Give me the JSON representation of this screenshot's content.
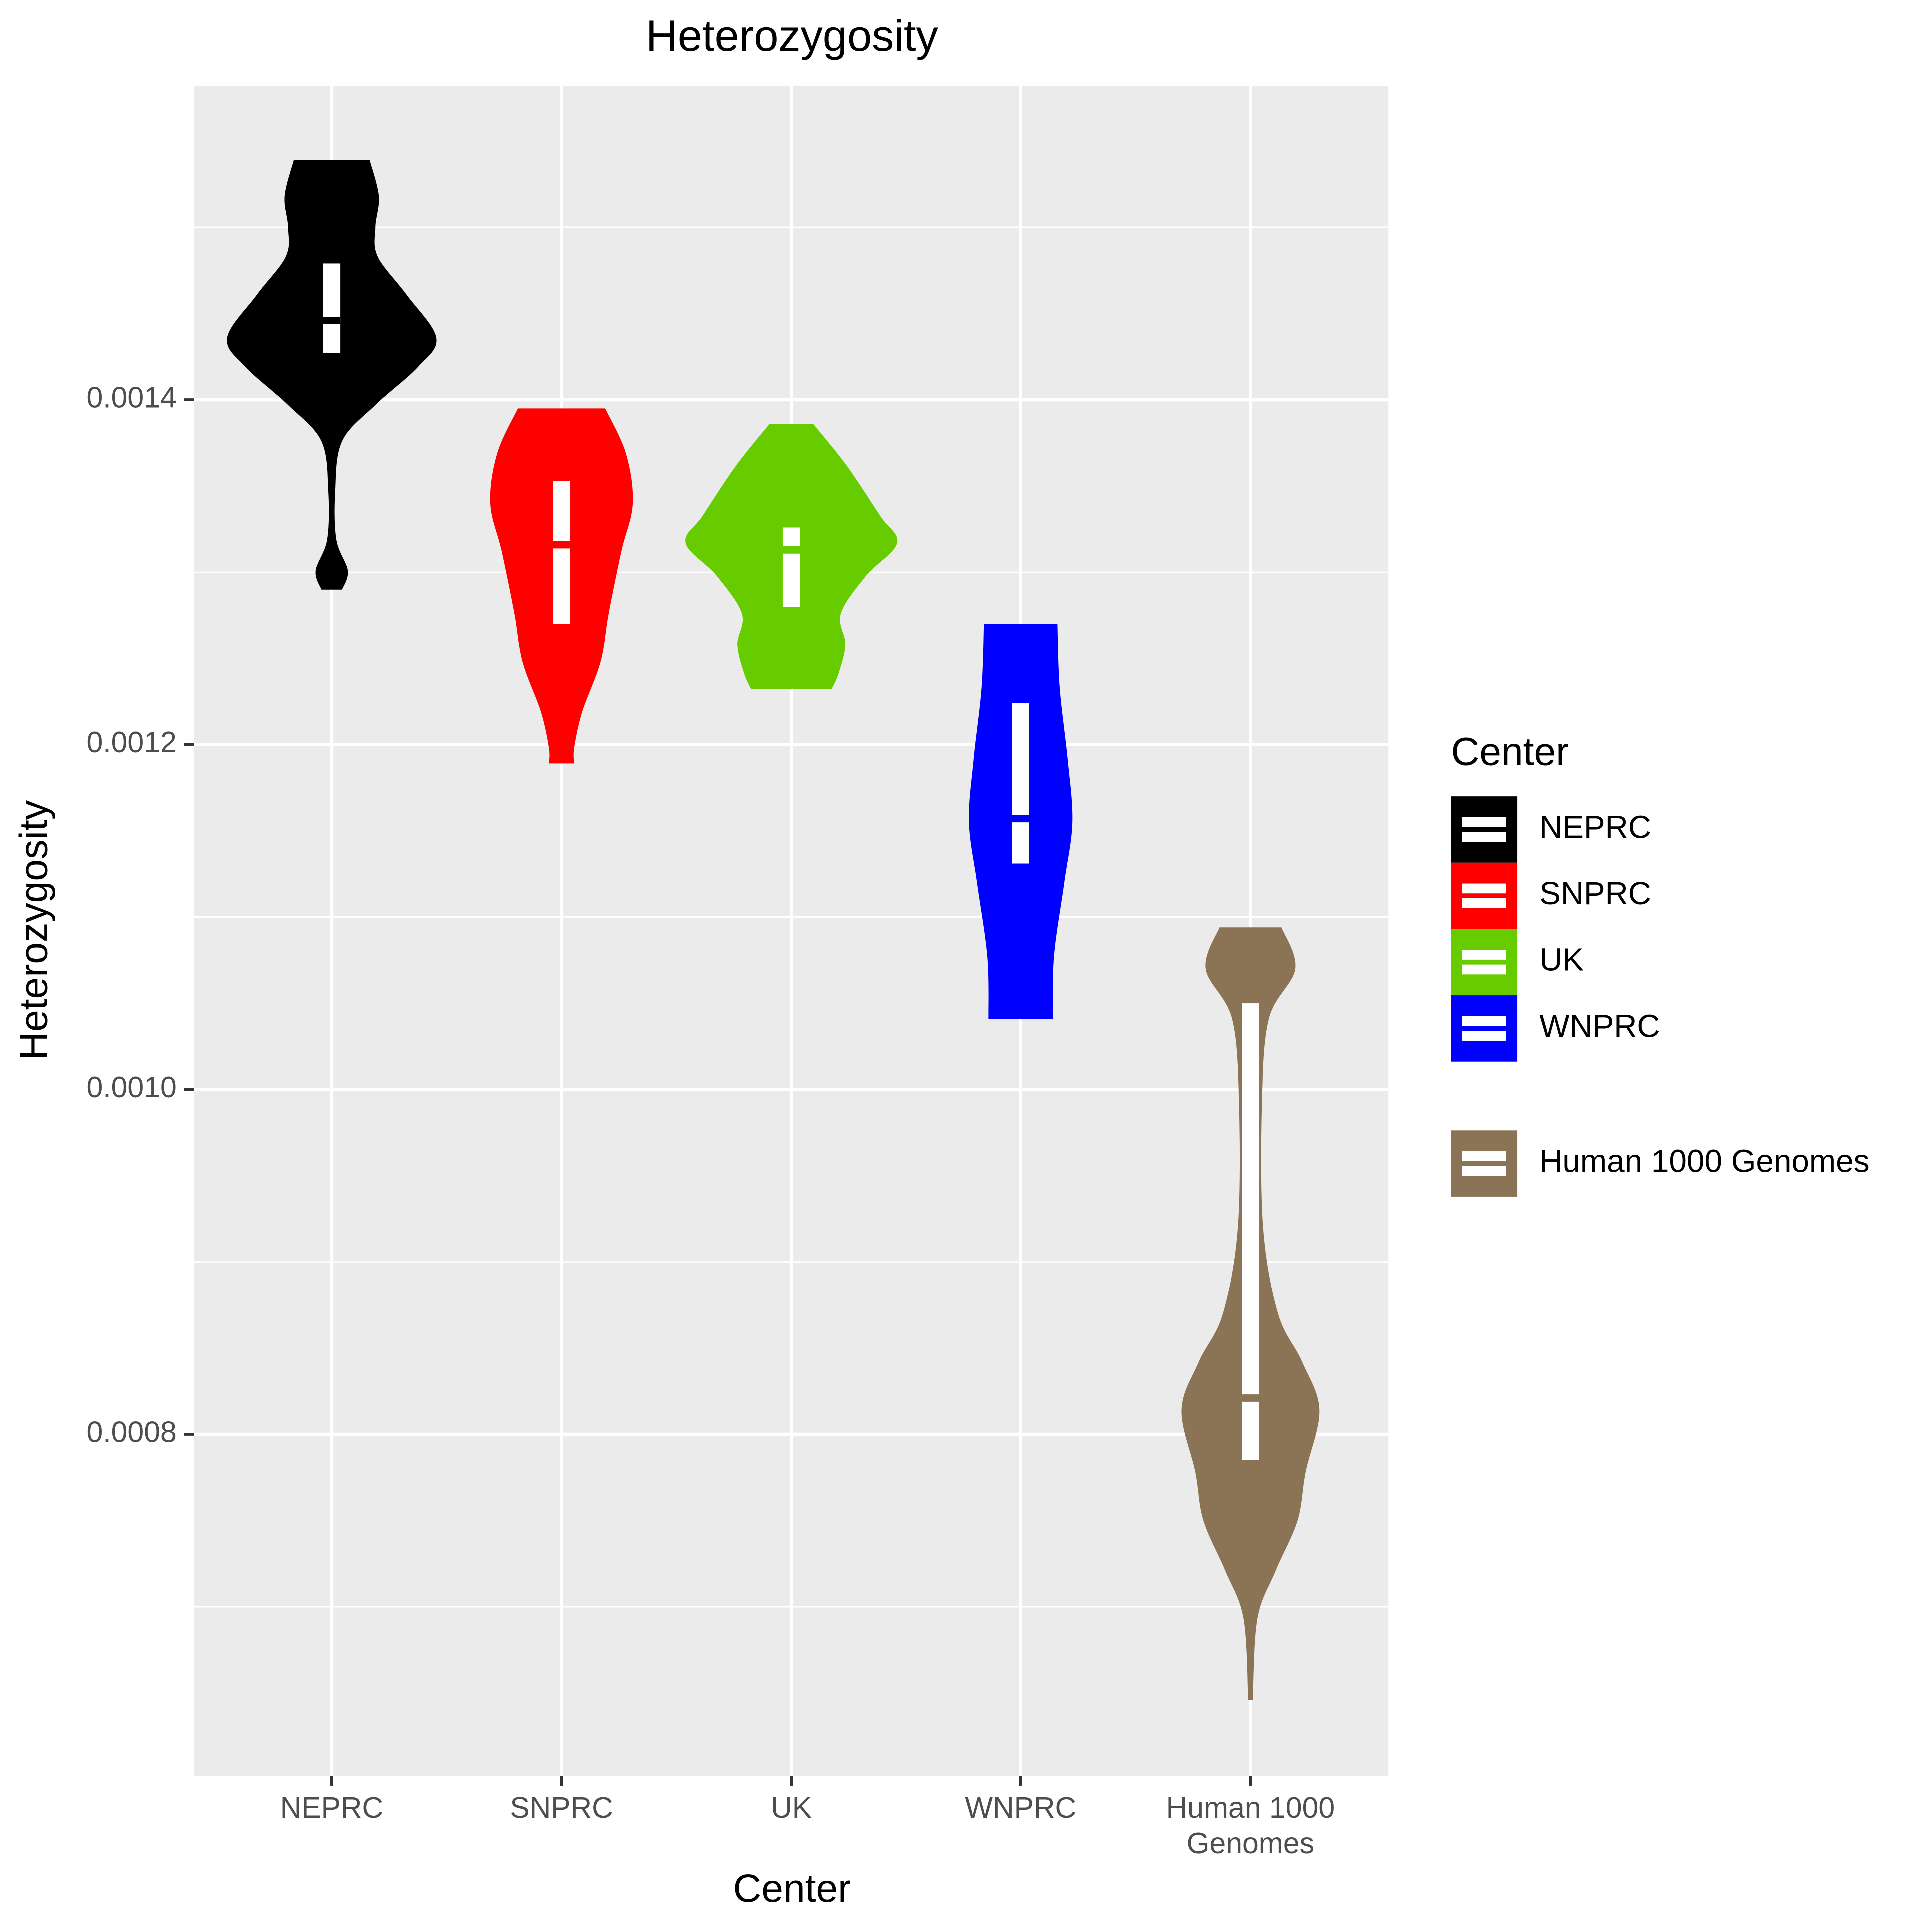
{
  "chart_data": {
    "type": "violin",
    "title": "Heterozygosity",
    "x_label": "Center",
    "y_label": "Heterozygosity",
    "categories": [
      "NEPRC",
      "SNPRC",
      "UK",
      "WNPRC",
      "Human 1000\nGenomes"
    ],
    "ylim": [
      0.000602,
      0.001582
    ],
    "yticks": [
      0.0008,
      {
        "value": 0.001,
        "label": "0.0010"
      },
      0.0012,
      0.0014
    ],
    "yminor": [
      0.0007,
      0.0009,
      0.0011,
      0.0013,
      0.0015
    ],
    "grid": true,
    "legend_title": "Center",
    "legend_position": "right",
    "series": [
      {
        "name": "NEPRC",
        "color": "#000000",
        "q1": 0.001427,
        "median": 0.001446,
        "q3": 0.001479,
        "density": {
          "values": [
            0.001539,
            0.001518,
            0.0015,
            0.001483,
            0.001461,
            0.001436,
            0.001419,
            0.001397,
            0.001376,
            0.001347,
            0.001319,
            0.001301,
            0.00129
          ],
          "widths": [
            0.33,
            0.41,
            0.38,
            0.4,
            0.65,
            0.91,
            0.75,
            0.38,
            0.09,
            0.03,
            0.04,
            0.14,
            0.09
          ]
        }
      },
      {
        "name": "SNPRC",
        "color": "#ff0000",
        "q1": 0.00127,
        "median": 0.001316,
        "q3": 0.001353,
        "density": {
          "values": [
            0.001395,
            0.001369,
            0.00134,
            0.001312,
            0.001276,
            0.001248,
            0.001219,
            0.001198,
            0.001189
          ],
          "widths": [
            0.38,
            0.56,
            0.62,
            0.52,
            0.41,
            0.34,
            0.18,
            0.11,
            0.11
          ]
        }
      },
      {
        "name": "UK",
        "color": "#66cc00",
        "q1": 0.00128,
        "median": 0.001313,
        "q3": 0.001326,
        "density": {
          "values": [
            0.001386,
            0.001362,
            0.001333,
            0.001317,
            0.001298,
            0.001276,
            0.001258,
            0.001241,
            0.001232
          ],
          "widths": [
            0.19,
            0.48,
            0.77,
            0.92,
            0.65,
            0.43,
            0.47,
            0.41,
            0.35
          ]
        }
      },
      {
        "name": "WNPRC",
        "color": "#0000ff",
        "q1": 0.001131,
        "median": 0.001157,
        "q3": 0.001224,
        "density": {
          "values": [
            0.00127,
            0.001233,
            0.001191,
            0.001155,
            0.00112,
            0.001077,
            0.001041
          ],
          "widths": [
            0.32,
            0.34,
            0.41,
            0.45,
            0.38,
            0.29,
            0.28
          ]
        }
      },
      {
        "name": "Human 1000 Genomes",
        "color": "#8b7355",
        "q1": 0.000785,
        "median": 0.000821,
        "q3": 0.00105,
        "density": {
          "values": [
            0.001094,
            0.00107,
            0.001041,
            0.000992,
            0.00092,
            0.00087,
            0.000842,
            0.000814,
            0.000778,
            0.00075,
            0.000721,
            0.000693,
            0.000646
          ],
          "widths": [
            0.27,
            0.39,
            0.16,
            0.1,
            0.11,
            0.24,
            0.45,
            0.6,
            0.48,
            0.41,
            0.22,
            0.06,
            0.02
          ]
        }
      }
    ]
  }
}
